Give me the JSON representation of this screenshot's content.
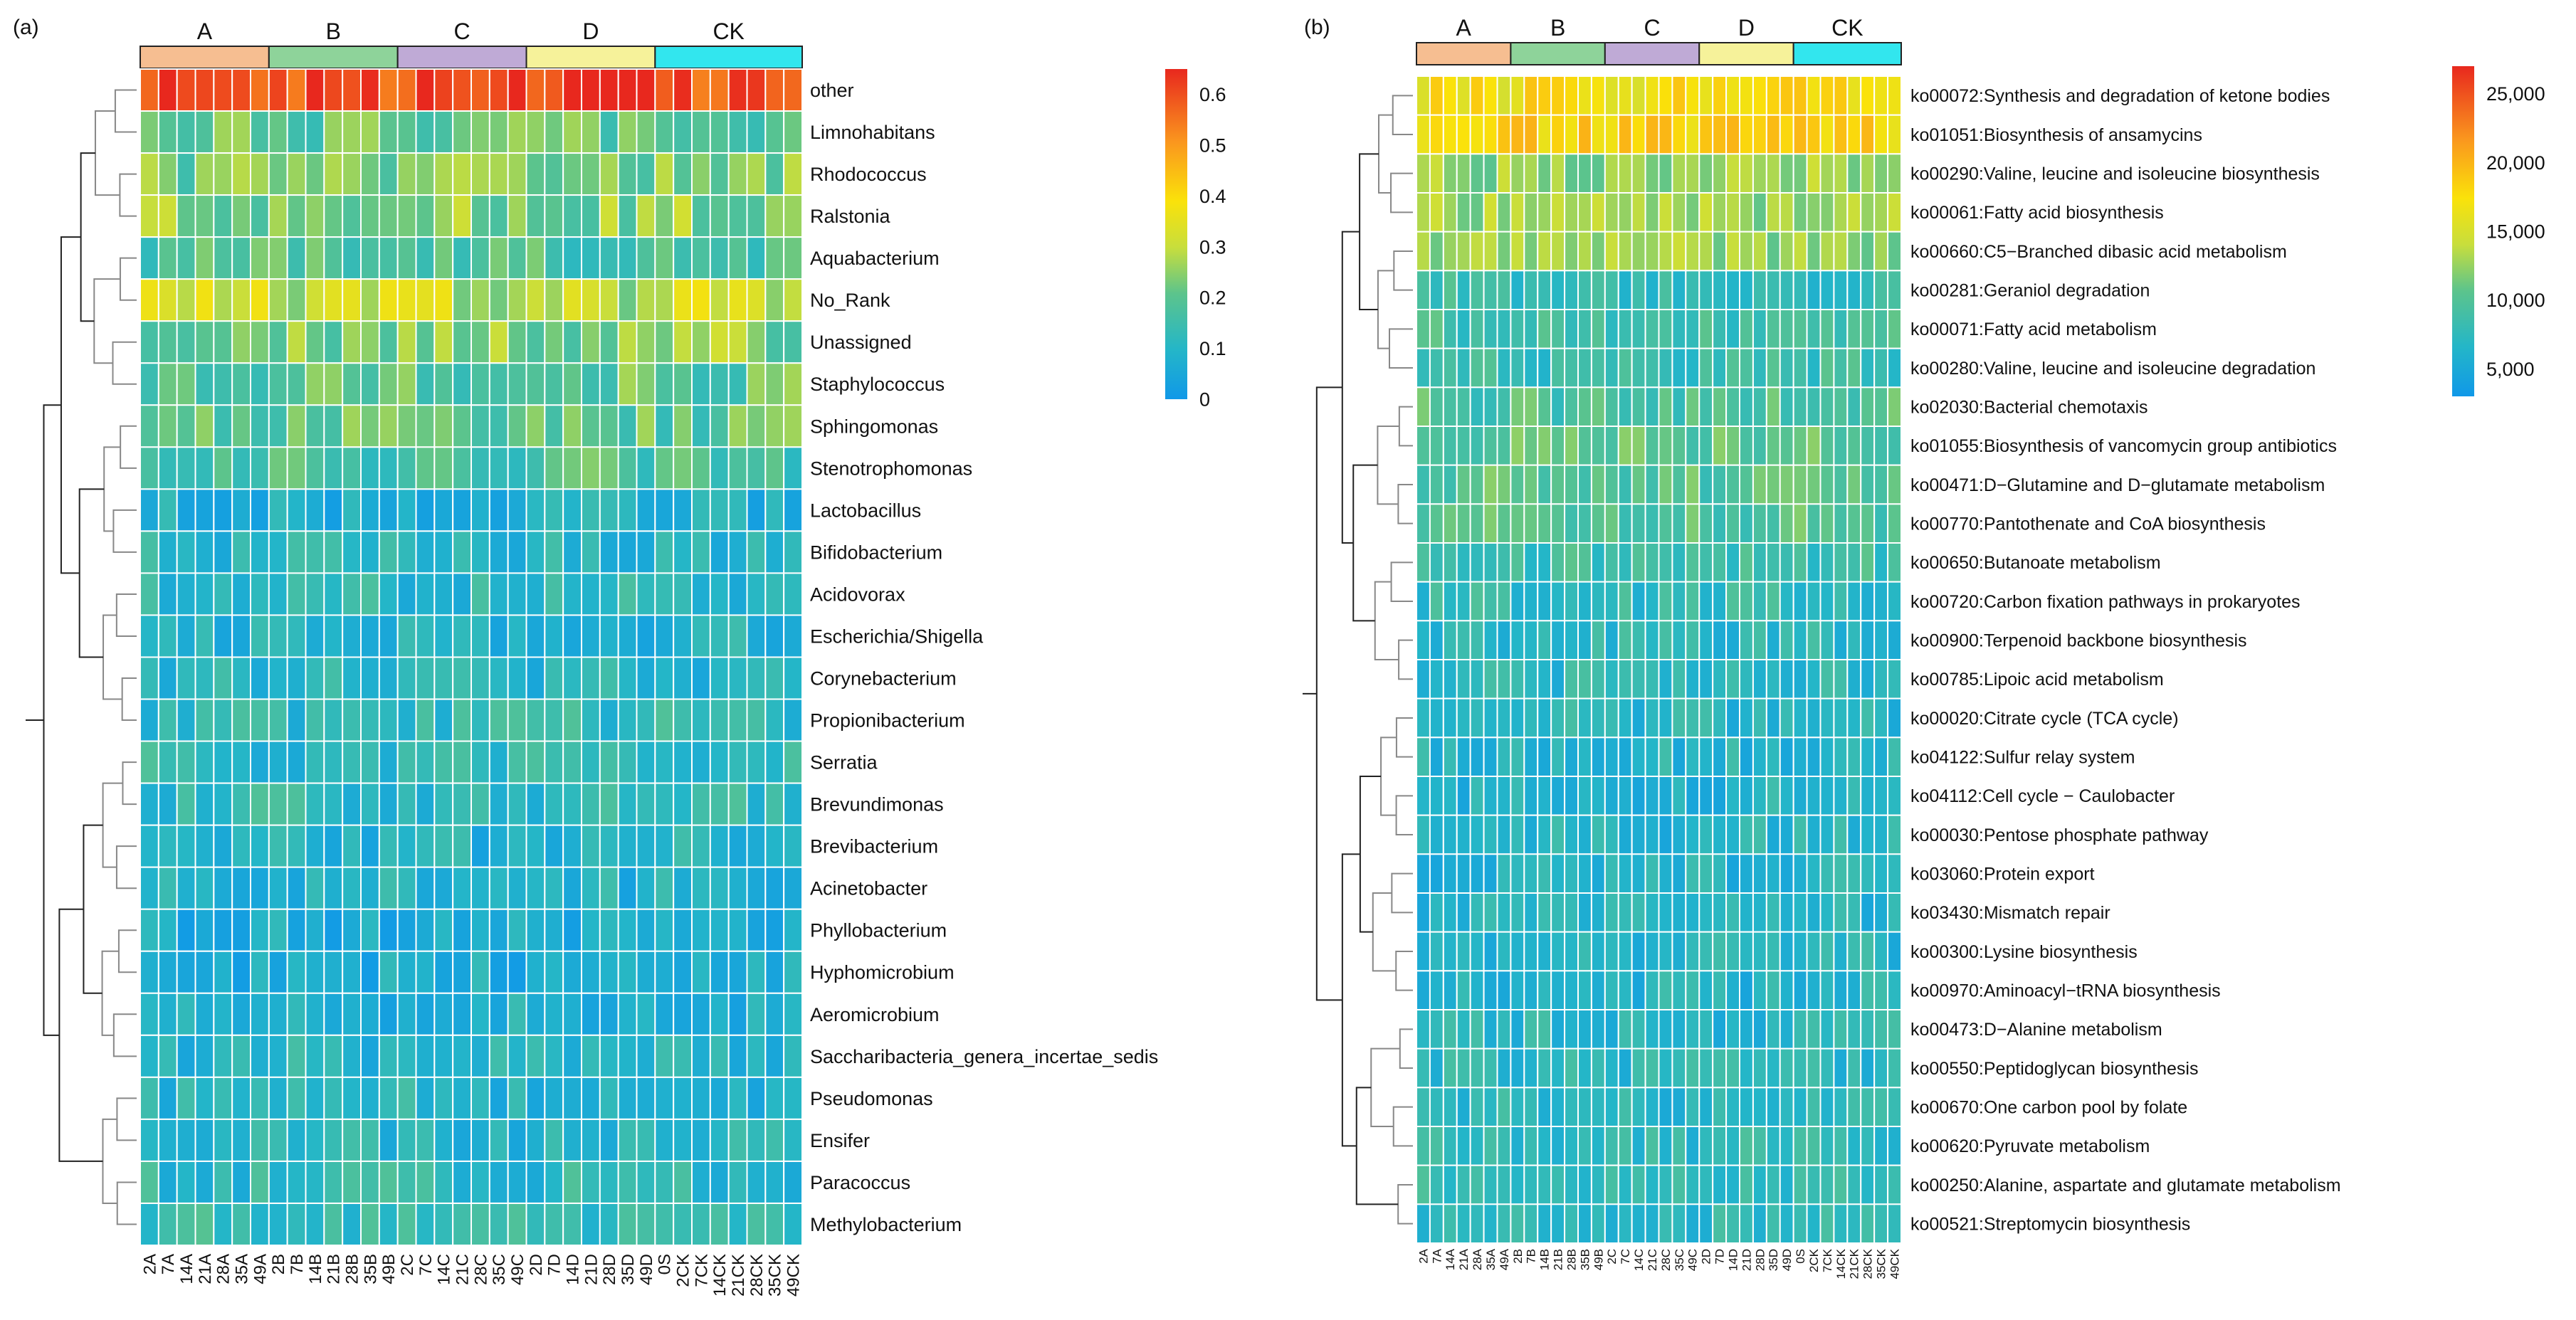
{
  "chart_data": [
    {
      "type": "heatmap",
      "panel_label": "(a)",
      "groups": [
        {
          "name": "A",
          "color": "#F6BE91"
        },
        {
          "name": "B",
          "color": "#8ED39A"
        },
        {
          "name": "C",
          "color": "#BFAAD6"
        },
        {
          "name": "D",
          "color": "#F6F29A"
        },
        {
          "name": "CK",
          "color": "#32E6EE"
        }
      ],
      "columns": [
        "2A",
        "7A",
        "14A",
        "21A",
        "28A",
        "35A",
        "49A",
        "2B",
        "7B",
        "14B",
        "21B",
        "28B",
        "35B",
        "49B",
        "2C",
        "7C",
        "14C",
        "21C",
        "28C",
        "35C",
        "49C",
        "2D",
        "7D",
        "14D",
        "21D",
        "28D",
        "35D",
        "49D",
        "0S",
        "2CK",
        "7CK",
        "14CK",
        "21CK",
        "28CK",
        "35CK",
        "49CK"
      ],
      "rows": [
        "other",
        "Limnohabitans",
        "Rhodococcus",
        "Ralstonia",
        "Aquabacterium",
        "No_Rank",
        "Unassigned",
        "Staphylococcus",
        "Sphingomonas",
        "Stenotrophomonas",
        "Lactobacillus",
        "Bifidobacterium",
        "Acidovorax",
        "Escherichia/Shigella",
        "Corynebacterium",
        "Propionibacterium",
        "Serratia",
        "Brevundimonas",
        "Brevibacterium",
        "Acinetobacter",
        "Phyllobacterium",
        "Hyphomicrobium",
        "Aeromicrobium",
        "Saccharibacteria_genera_incertae_sedis",
        "Pseudomonas",
        "Ensifer",
        "Paracoccus",
        "Methylobacterium"
      ],
      "row_levels": [
        0.58,
        0.2,
        0.22,
        0.24,
        0.18,
        0.3,
        0.24,
        0.2,
        0.2,
        0.18,
        0.08,
        0.11,
        0.11,
        0.09,
        0.1,
        0.12,
        0.12,
        0.12,
        0.09,
        0.09,
        0.07,
        0.07,
        0.08,
        0.1,
        0.1,
        0.1,
        0.12,
        0.14
      ],
      "values_note": "Each cell value is derived from row_levels via a fixed deterministic variation",
      "colorbar": {
        "min": 0,
        "max": 0.65,
        "ticks": [
          "0.6",
          "0.5",
          "0.4",
          "0.3",
          "0.2",
          "0.1",
          "0"
        ],
        "tick_values": [
          0.6,
          0.5,
          0.4,
          0.3,
          0.2,
          0.1,
          0
        ]
      }
    },
    {
      "type": "heatmap",
      "panel_label": "(b)",
      "groups": [
        {
          "name": "A",
          "color": "#F6BE91"
        },
        {
          "name": "B",
          "color": "#8ED39A"
        },
        {
          "name": "C",
          "color": "#BFAAD6"
        },
        {
          "name": "D",
          "color": "#F6F29A"
        },
        {
          "name": "CK",
          "color": "#32E6EE"
        }
      ],
      "columns": [
        "2A",
        "7A",
        "14A",
        "21A",
        "28A",
        "35A",
        "49A",
        "2B",
        "7B",
        "14B",
        "21B",
        "28B",
        "35B",
        "49B",
        "2C",
        "7C",
        "14C",
        "21C",
        "28C",
        "35C",
        "49C",
        "2D",
        "7D",
        "14D",
        "21D",
        "28D",
        "35D",
        "49D",
        "0S",
        "2CK",
        "7CK",
        "14CK",
        "21CK",
        "28CK",
        "35CK",
        "49CK"
      ],
      "rows": [
        "ko00072:Synthesis and degradation of ketone bodies",
        "ko01051:Biosynthesis of ansamycins",
        "ko00290:Valine, leucine and isoleucine biosynthesis",
        "ko00061:Fatty acid biosynthesis",
        "ko00660:C5−Branched dibasic acid metabolism",
        "ko00281:Geraniol degradation",
        "ko00071:Fatty acid metabolism",
        "ko00280:Valine, leucine and isoleucine degradation",
        "ko02030:Bacterial chemotaxis",
        "ko01055:Biosynthesis of vancomycin group antibiotics",
        "ko00471:D−Glutamine and D−glutamate metabolism",
        "ko00770:Pantothenate and CoA biosynthesis",
        "ko00650:Butanoate metabolism",
        "ko00720:Carbon fixation pathways in prokaryotes",
        "ko00900:Terpenoid backbone biosynthesis",
        "ko00785:Lipoic acid metabolism",
        "ko00020:Citrate cycle (TCA cycle)",
        "ko04122:Sulfur relay system",
        "ko04112:Cell cycle − Caulobacter",
        "ko00030:Pentose phosphate pathway",
        "ko03060:Protein export",
        "ko03430:Mismatch repair",
        "ko00300:Lysine biosynthesis",
        "ko00970:Aminoacyl−tRNA biosynthesis",
        "ko00473:D−Alanine metabolism",
        "ko00550:Peptidoglycan biosynthesis",
        "ko00670:One carbon pool by folate",
        "ko00620:Pyruvate metabolism",
        "ko00250:Alanine, aspartate and glutamate metabolism",
        "ko00521:Streptomycin biosynthesis"
      ],
      "row_levels": [
        17000,
        18000,
        12500,
        13000,
        12800,
        8200,
        8800,
        8400,
        9600,
        10600,
        10000,
        9800,
        8600,
        7600,
        7300,
        7100,
        6900,
        6700,
        6600,
        6700,
        6600,
        6700,
        6800,
        6600,
        6900,
        7000,
        7100,
        7500,
        7700,
        7200
      ],
      "values_note": "Each cell value is derived from row_levels via a fixed deterministic variation",
      "colorbar": {
        "min": 3000,
        "max": 27000,
        "ticks": [
          "25,000",
          "20,000",
          "15,000",
          "10,000",
          "5,000"
        ],
        "tick_values": [
          25000,
          20000,
          15000,
          10000,
          5000
        ]
      }
    }
  ]
}
